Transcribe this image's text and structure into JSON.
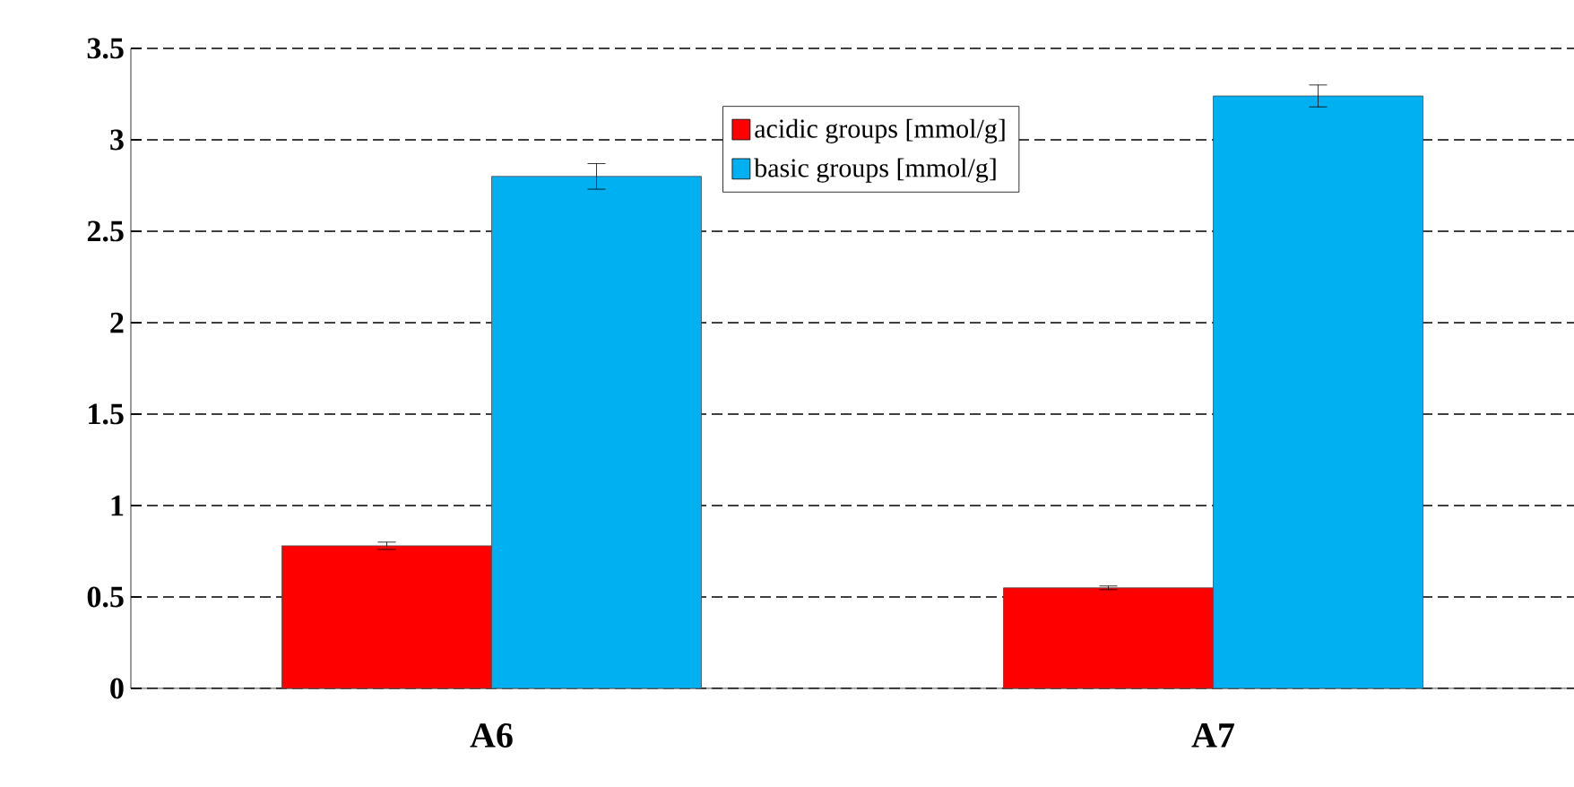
{
  "chart_data": {
    "type": "bar",
    "categories": [
      "A6",
      "A7"
    ],
    "series": [
      {
        "name": "acidic groups [mmol/g]",
        "color": "#ff0000",
        "values": [
          0.78,
          0.55
        ],
        "errors": [
          0.02,
          0.01
        ]
      },
      {
        "name": "basic groups [mmol/g]",
        "color": "#00b0f0",
        "values": [
          2.8,
          3.24
        ],
        "errors": [
          0.07,
          0.06
        ]
      }
    ],
    "ylim": [
      0,
      3.5
    ],
    "yticks": [
      0,
      0.5,
      1,
      1.5,
      2,
      2.5,
      3,
      3.5
    ],
    "grid": "y",
    "legend": "top"
  }
}
